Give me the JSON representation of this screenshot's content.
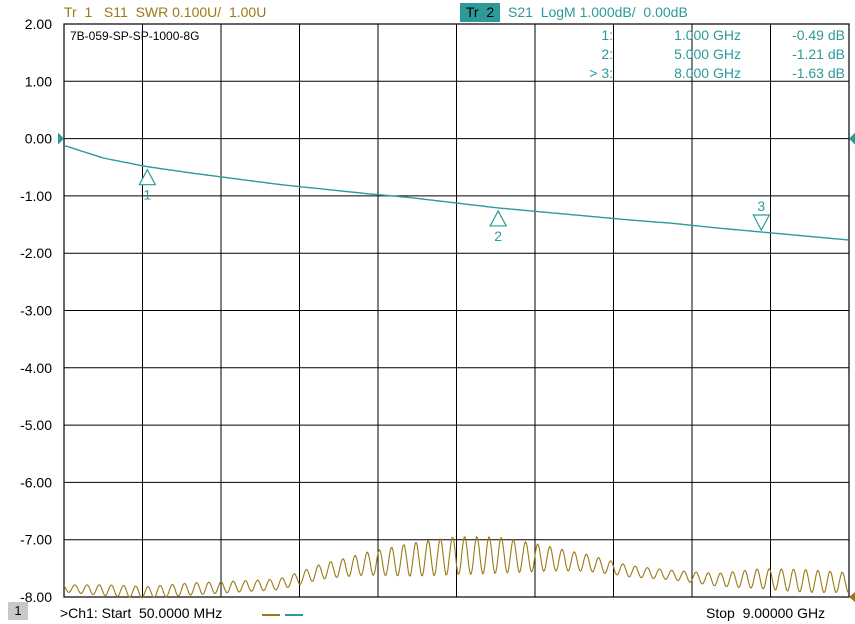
{
  "header": {
    "trace1": "Tr  1   S11  SWR 0.100U/  1.00U",
    "trace2_badge": "Tr  2",
    "trace2": "S21  LogM 1.000dB/  0.00dB"
  },
  "footer": {
    "channel": "1",
    "start": ">Ch1: Start  50.0000 MHz",
    "stop": "Stop  9.00000 GHz"
  },
  "colors": {
    "trace1": "#9a7a14",
    "trace2": "#2d9a9a",
    "grid": "#000000"
  },
  "chart_data": {
    "type": "line",
    "title": "7B-059-SP-SP-1000-8G",
    "x_unit": "GHz",
    "xlim": [
      0.05,
      9.0
    ],
    "ylim": [
      -8.0,
      2.0
    ],
    "yticks": [
      "2.00",
      "1.00",
      "0.00",
      "-1.00",
      "-2.00",
      "-3.00",
      "-4.00",
      "-5.00",
      "-6.00",
      "-7.00",
      "-8.00"
    ],
    "grid": true,
    "reference_line": 0.0,
    "series": [
      {
        "name": "S21",
        "x": [
          0.05,
          0.5,
          1.0,
          1.5,
          2.0,
          2.5,
          3.0,
          3.5,
          4.0,
          4.5,
          5.0,
          5.5,
          6.0,
          6.5,
          7.0,
          7.5,
          8.0,
          8.5,
          9.0
        ],
        "y": [
          -0.12,
          -0.34,
          -0.49,
          -0.6,
          -0.7,
          -0.8,
          -0.88,
          -0.96,
          -1.03,
          -1.12,
          -1.21,
          -1.28,
          -1.35,
          -1.42,
          -1.48,
          -1.56,
          -1.63,
          -1.7,
          -1.77
        ]
      },
      {
        "name": "S11",
        "x": [
          0.05,
          0.5,
          1.0,
          1.5,
          2.0,
          2.5,
          3.0,
          3.5,
          4.0,
          4.5,
          5.0,
          5.5,
          6.0,
          6.5,
          7.0,
          7.5,
          8.0,
          8.5,
          9.0
        ],
        "y_base": [
          -7.85,
          -7.88,
          -7.92,
          -7.86,
          -7.82,
          -7.78,
          -7.55,
          -7.42,
          -7.35,
          -7.28,
          -7.27,
          -7.32,
          -7.4,
          -7.55,
          -7.62,
          -7.7,
          -7.68,
          -7.72,
          -7.75
        ],
        "ripple": [
          0.08,
          0.1,
          0.1,
          0.12,
          0.14,
          0.18,
          0.26,
          0.3,
          0.33,
          0.33,
          0.33,
          0.3,
          0.26,
          0.2,
          0.14,
          0.14,
          0.18,
          0.2,
          0.2
        ]
      }
    ],
    "markers": [
      {
        "label": "1",
        "list_label": "1:",
        "x": 1.0,
        "x_text": "1.000 GHz",
        "y": -0.49,
        "value_text": "-0.49 dB",
        "dir": "up"
      },
      {
        "label": "2",
        "list_label": "2:",
        "x": 5.0,
        "x_text": "5.000 GHz",
        "y": -1.21,
        "value_text": "-1.21 dB",
        "dir": "up"
      },
      {
        "label": "3",
        "list_label": "> 3:",
        "x": 8.0,
        "x_text": "8.000 GHz",
        "y": -1.63,
        "value_text": "-1.63 dB",
        "dir": "down"
      }
    ]
  }
}
